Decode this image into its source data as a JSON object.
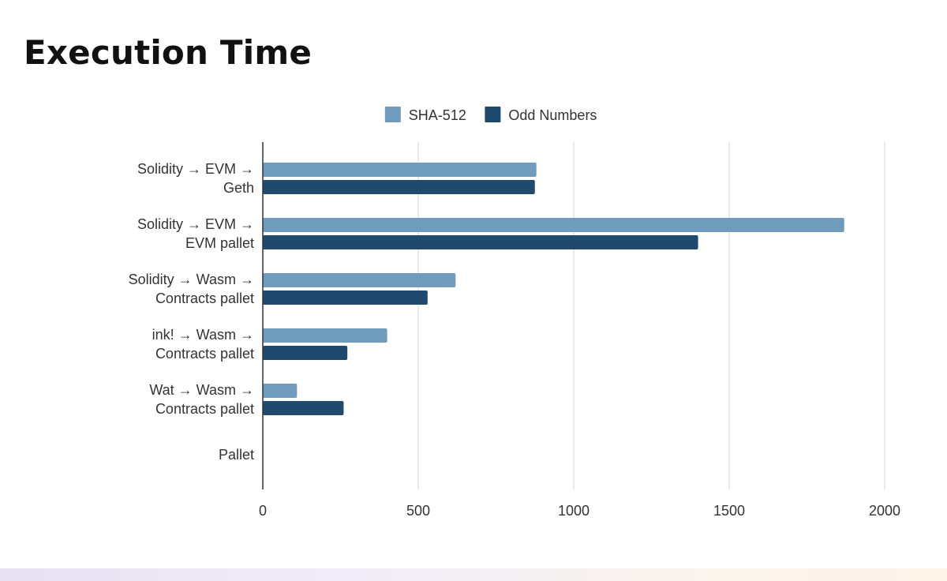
{
  "slide": {
    "title": "Execution Time"
  },
  "chart_data": {
    "type": "bar",
    "orientation": "horizontal",
    "title": "",
    "xlabel": "",
    "ylabel": "",
    "categories": [
      [
        "Solidity → EVM →",
        "Geth"
      ],
      [
        "Solidity → EVM →",
        "EVM pallet"
      ],
      [
        "Solidity → Wasm →",
        "Contracts pallet"
      ],
      [
        "ink! → Wasm →",
        "Contracts pallet"
      ],
      [
        "Wat → Wasm →",
        "Contracts pallet"
      ],
      [
        "Pallet"
      ]
    ],
    "series": [
      {
        "name": "SHA-512",
        "color": "#6f9bbd",
        "values": [
          880,
          1870,
          620,
          400,
          110,
          null
        ]
      },
      {
        "name": "Odd Numbers",
        "color": "#1f4a6e",
        "values": [
          875,
          1400,
          530,
          272,
          260,
          null
        ]
      }
    ],
    "xlim": [
      0,
      2000
    ],
    "xticks": [
      0,
      500,
      1000,
      1500,
      2000
    ],
    "grid": true,
    "legend": "top"
  }
}
